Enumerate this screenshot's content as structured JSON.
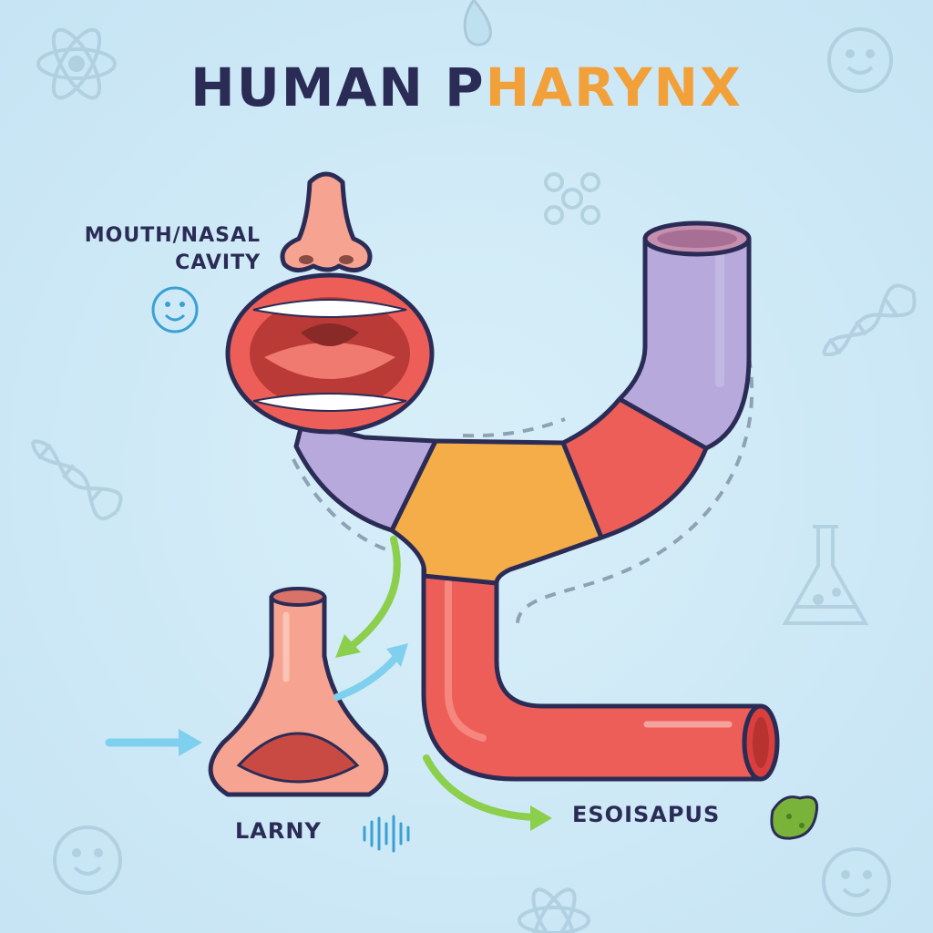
{
  "title": {
    "part1": "HUMAN P",
    "part2": "HARYNX",
    "accent_color": "#f2a13a",
    "text_color": "#2b2c56"
  },
  "labels": {
    "mouth_line1": "MOUTH/NASAL",
    "mouth_line2": "CAVITY",
    "larynx": "LARNY",
    "esophagus": "ESOISAPUS"
  },
  "colors": {
    "background": "#cfe9f7",
    "nasopharynx": "#b7a9dc",
    "oropharynx": "#f4ad48",
    "laryngopharynx": "#ee5e58",
    "esophagus": "#ee5e58",
    "larynx": "#f6a391",
    "arrow_green": "#8ccf4d",
    "arrow_blue": "#7fd0ee"
  },
  "icons": [
    "atom-icon",
    "water-drop-icon",
    "smiley-icon",
    "molecule-icon",
    "dna-icon",
    "flask-icon",
    "sound-wave-icon",
    "bacteria-icon",
    "nose-icon",
    "mouth-icon"
  ]
}
